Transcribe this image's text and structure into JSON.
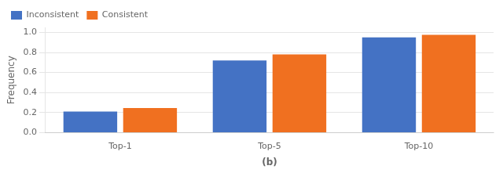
{
  "chart_data": {
    "type": "bar",
    "categories": [
      "Top-1",
      "Top-5",
      "Top-10"
    ],
    "series": [
      {
        "name": "Inconsistent",
        "color": "#4472c4",
        "values": [
          0.21,
          0.72,
          0.95
        ]
      },
      {
        "name": "Consistent",
        "color": "#f07020",
        "values": [
          0.245,
          0.78,
          0.975
        ]
      }
    ],
    "xlabel": "(b)",
    "ylabel": "Frequency",
    "ylim": [
      0.0,
      1.05
    ],
    "yticks": [
      {
        "value": 0.0,
        "label": "0.0"
      },
      0.2,
      0.4,
      0.6,
      0.8,
      {
        "value": 1.0,
        "label": "1.0"
      }
    ],
    "grid": true,
    "legend": "upper left"
  }
}
